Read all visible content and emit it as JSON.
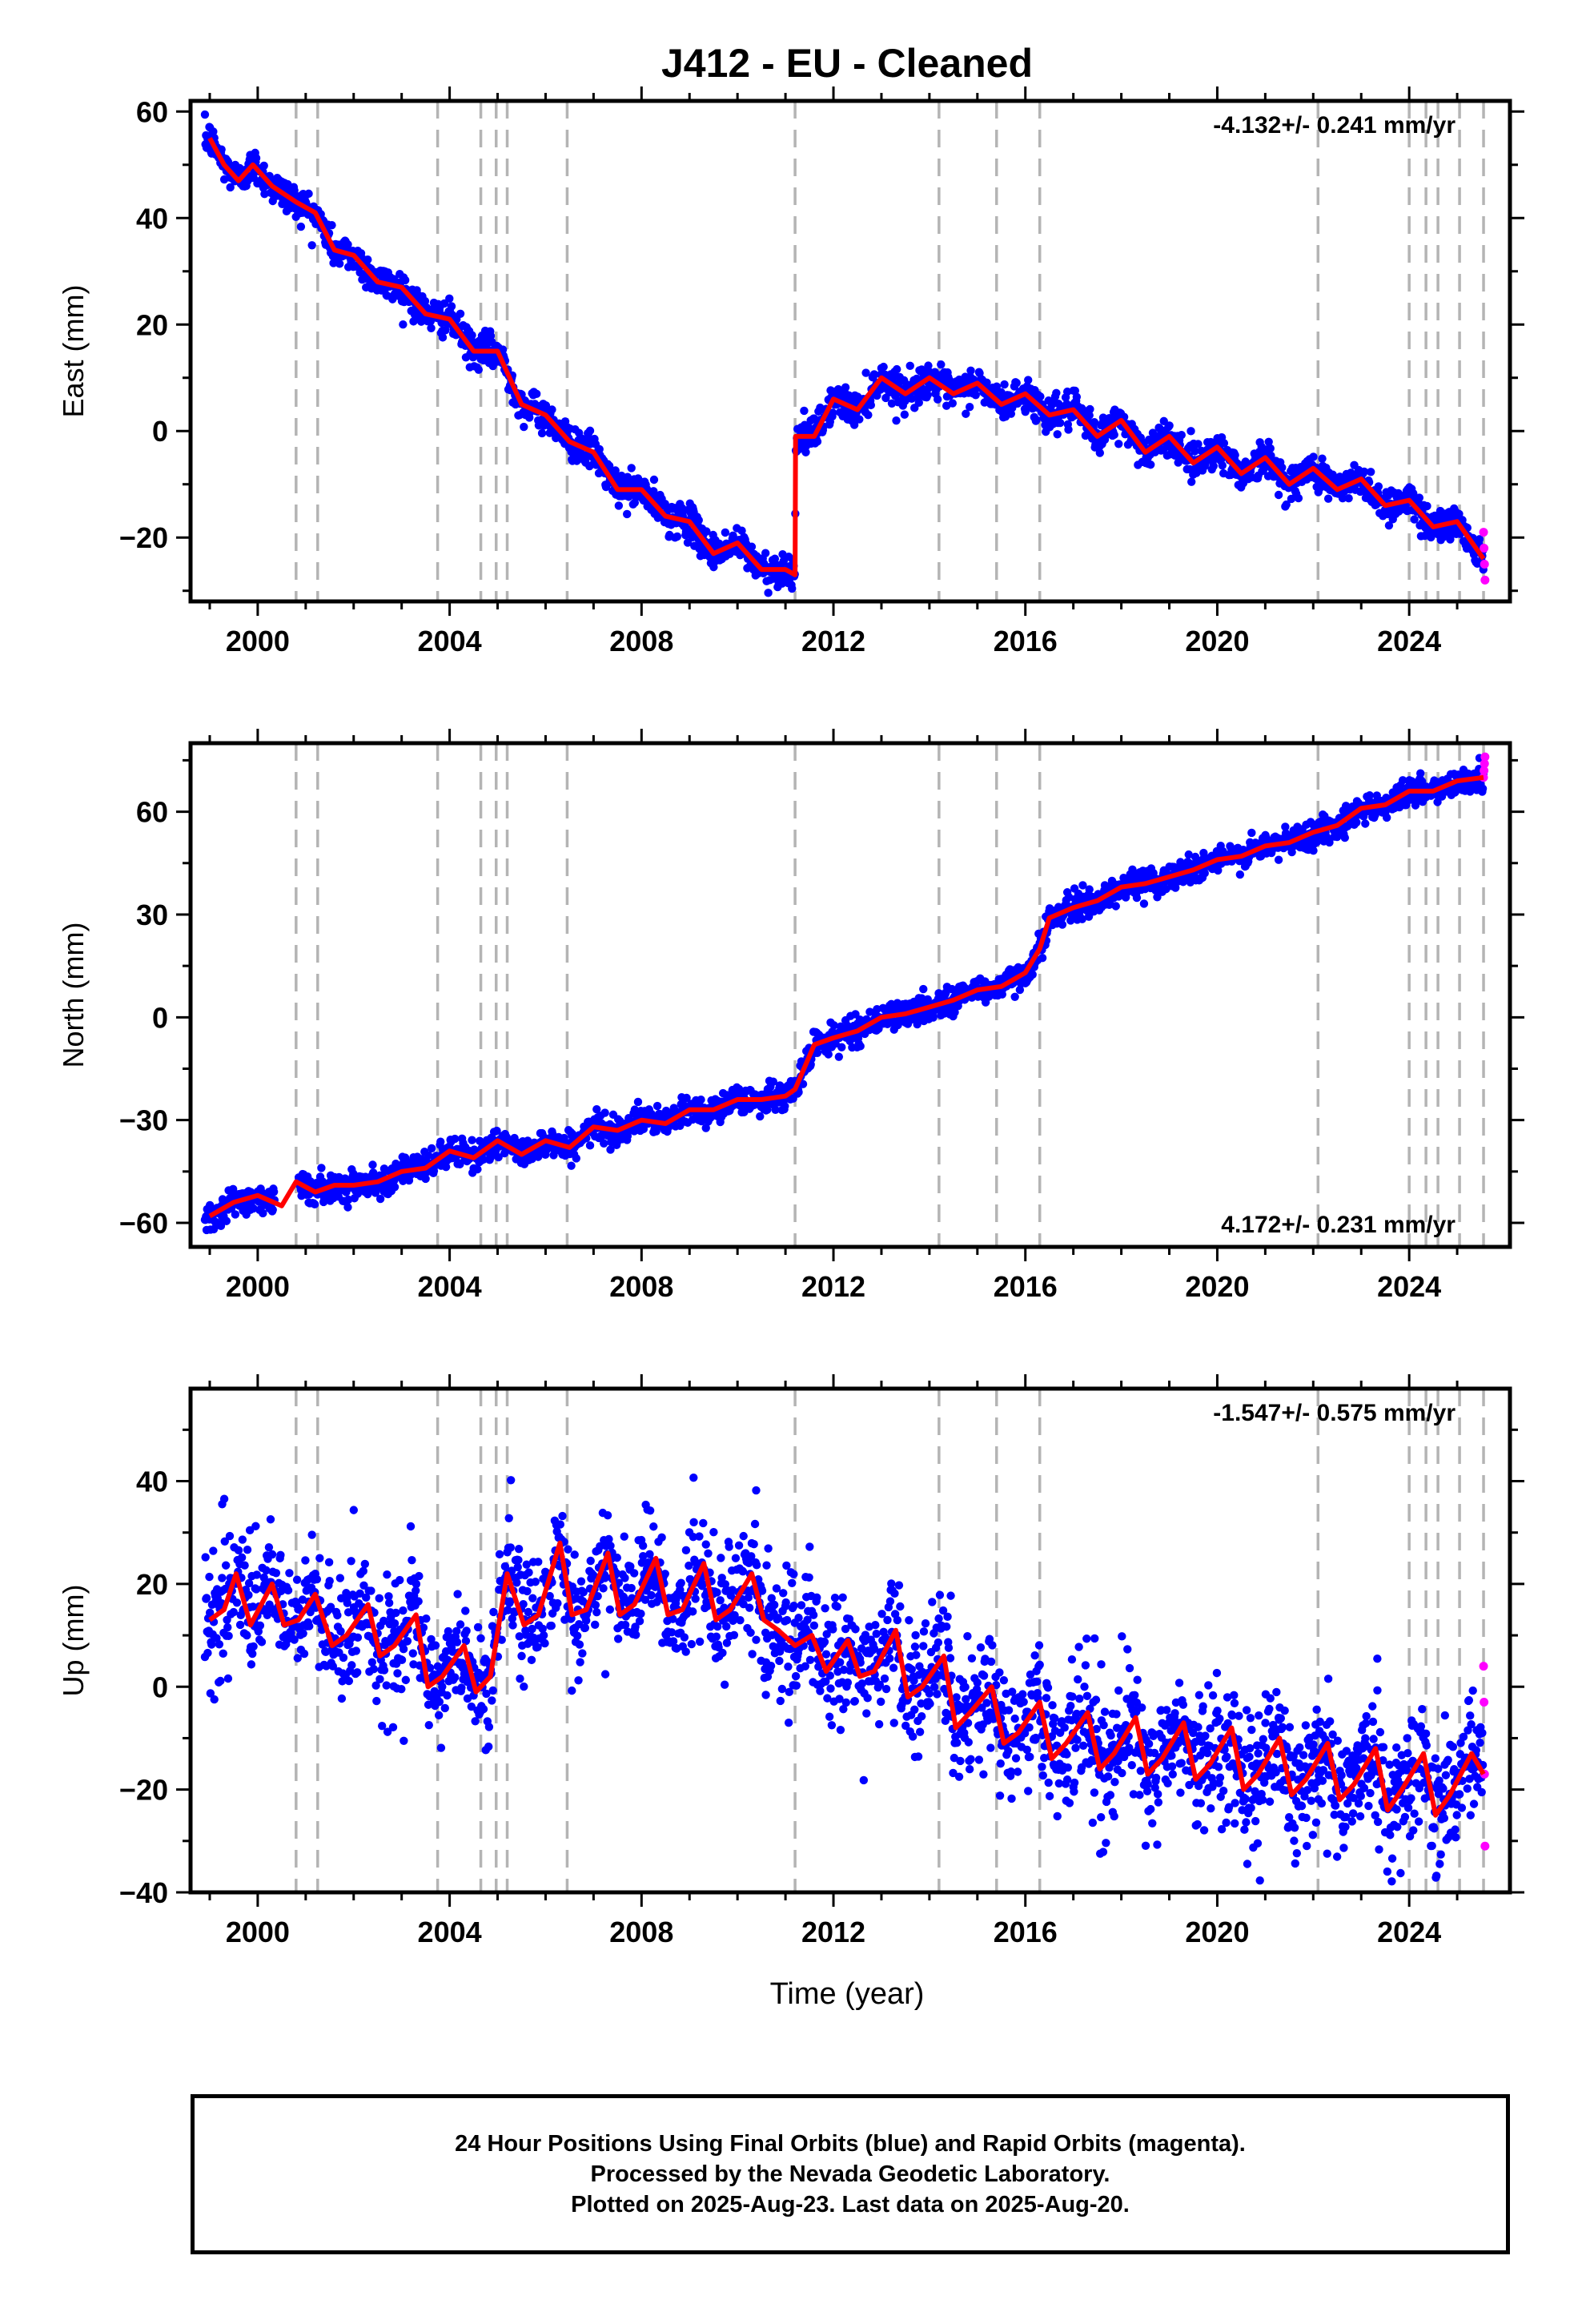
{
  "title": "J412  - EU - Cleaned",
  "x_axis_label": "Time (year)",
  "footer": {
    "line1": "24 Hour Positions Using Final Orbits (blue) and Rapid Orbits (magenta).",
    "line2": "Processed by the Nevada Geodetic Laboratory.",
    "line3": "Plotted on 2025-Aug-23. Last data on 2025-Aug-20."
  },
  "colors": {
    "final_orbits": "#0000ff",
    "rapid_orbits": "#ff00ff",
    "model": "#ff0000",
    "steps": "#b4b4b4"
  },
  "chart_data": [
    {
      "type": "scatter",
      "component": "east",
      "ylabel": "East (mm)",
      "rate_label": "-4.132+/- 0.241 mm/yr",
      "rate_position": "top-right",
      "xlim": [
        1998.6,
        2026.1
      ],
      "ylim": [
        -32,
        62
      ],
      "xticks": [
        2000,
        2004,
        2008,
        2012,
        2016,
        2020,
        2024
      ],
      "yticks": [
        -20,
        0,
        20,
        40,
        60
      ],
      "grid": false,
      "step_epochs": [
        2000.8,
        2001.25,
        2003.75,
        2004.65,
        2004.97,
        2005.2,
        2006.45,
        2011.2,
        2014.2,
        2015.4,
        2016.3,
        2022.1,
        2024.0,
        2024.35,
        2024.6,
        2025.05,
        2025.55
      ],
      "model": {
        "x": [
          1999.0,
          1999.3,
          1999.6,
          1999.9,
          2000.3,
          2000.8,
          2001.2,
          2001.6,
          2002.0,
          2002.5,
          2003.0,
          2003.5,
          2004.0,
          2004.5,
          2005.0,
          2005.5,
          2006.0,
          2006.5,
          2007.0,
          2007.5,
          2008.0,
          2008.5,
          2009.0,
          2009.5,
          2010.0,
          2010.5,
          2011.0,
          2011.2,
          2011.21,
          2011.6,
          2012.0,
          2012.5,
          2013.0,
          2013.5,
          2014.0,
          2014.5,
          2015.0,
          2015.5,
          2016.0,
          2016.5,
          2017.0,
          2017.5,
          2018.0,
          2018.5,
          2019.0,
          2019.5,
          2020.0,
          2020.5,
          2021.0,
          2021.5,
          2022.0,
          2022.5,
          2023.0,
          2023.5,
          2024.0,
          2024.5,
          2025.0,
          2025.55
        ],
        "y": [
          55,
          50,
          47,
          50,
          46,
          43,
          41,
          34,
          33,
          28,
          27,
          22,
          21,
          15,
          15,
          5,
          3,
          -2,
          -4,
          -11,
          -11,
          -16,
          -17,
          -23,
          -21,
          -26,
          -26,
          -27,
          -1,
          -1,
          6,
          4,
          10,
          7,
          10,
          7,
          9,
          5,
          7,
          3,
          4,
          -1,
          2,
          -4,
          -1,
          -6,
          -3,
          -8,
          -5,
          -10,
          -7,
          -11,
          -9,
          -14,
          -13,
          -18,
          -17,
          -24
        ]
      },
      "final_points": {
        "color": "#0000ff",
        "description_range": [
          1998.9,
          2025.55
        ]
      },
      "rapid_points": {
        "color": "#ff00ff",
        "x": [
          2025.55,
          2025.56,
          2025.57,
          2025.58
        ],
        "y": [
          -19,
          -22,
          -25,
          -28
        ]
      }
    },
    {
      "type": "scatter",
      "component": "north",
      "ylabel": "North (mm)",
      "rate_label": "4.172+/- 0.231 mm/yr",
      "rate_position": "bottom-right",
      "xlim": [
        1998.6,
        2026.1
      ],
      "ylim": [
        -67,
        80
      ],
      "xticks": [
        2000,
        2004,
        2008,
        2012,
        2016,
        2020,
        2024
      ],
      "yticks": [
        -60,
        -30,
        0,
        30,
        60
      ],
      "grid": false,
      "step_epochs": [
        2000.8,
        2001.25,
        2003.75,
        2004.65,
        2004.97,
        2005.2,
        2006.45,
        2011.2,
        2014.2,
        2015.4,
        2016.3,
        2022.1,
        2024.0,
        2024.35,
        2024.6,
        2025.05,
        2025.55
      ],
      "model": {
        "x": [
          1999.0,
          1999.5,
          2000.0,
          2000.5,
          2000.8,
          2001.2,
          2001.6,
          2002.0,
          2002.5,
          2003.0,
          2003.5,
          2004.0,
          2004.5,
          2005.0,
          2005.5,
          2006.0,
          2006.5,
          2007.0,
          2007.5,
          2008.0,
          2008.5,
          2009.0,
          2009.5,
          2010.0,
          2010.5,
          2011.0,
          2011.2,
          2011.6,
          2012.0,
          2012.5,
          2013.0,
          2013.5,
          2014.0,
          2014.5,
          2015.0,
          2015.5,
          2016.0,
          2016.3,
          2016.5,
          2017.0,
          2017.5,
          2018.0,
          2018.5,
          2019.0,
          2019.5,
          2020.0,
          2020.5,
          2021.0,
          2021.5,
          2022.0,
          2022.5,
          2023.0,
          2023.5,
          2024.0,
          2024.5,
          2025.0,
          2025.55
        ],
        "y": [
          -58,
          -54,
          -52,
          -55,
          -48,
          -51,
          -49,
          -49,
          -48,
          -45,
          -44,
          -39,
          -41,
          -36,
          -40,
          -36,
          -38,
          -32,
          -33,
          -30,
          -31,
          -27,
          -27,
          -24,
          -24,
          -23,
          -21,
          -8,
          -6,
          -4,
          0,
          1,
          3,
          5,
          8,
          9,
          13,
          20,
          29,
          32,
          34,
          38,
          39,
          41,
          43,
          46,
          47,
          50,
          51,
          54,
          56,
          61,
          62,
          66,
          66,
          69,
          70
        ]
      },
      "final_points": {
        "color": "#0000ff",
        "description_range": [
          1998.9,
          2025.55
        ]
      },
      "rapid_points": {
        "color": "#ff00ff",
        "x": [
          2025.55,
          2025.56,
          2025.57,
          2025.58
        ],
        "y": [
          70,
          72,
          74,
          76
        ]
      }
    },
    {
      "type": "scatter",
      "component": "up",
      "ylabel": "Up (mm)",
      "rate_label": "-1.547+/- 0.575 mm/yr",
      "rate_position": "top-right",
      "xlim": [
        1998.6,
        2026.1
      ],
      "ylim": [
        -40,
        58
      ],
      "xticks": [
        2000,
        2004,
        2008,
        2012,
        2016,
        2020,
        2024
      ],
      "yticks": [
        -40,
        -20,
        0,
        20,
        40
      ],
      "grid": false,
      "step_epochs": [
        2000.8,
        2001.25,
        2003.75,
        2004.65,
        2004.97,
        2005.2,
        2006.45,
        2011.2,
        2014.2,
        2015.4,
        2016.3,
        2022.1,
        2024.0,
        2024.35,
        2024.6,
        2025.05,
        2025.55
      ],
      "model": {
        "x": [
          1999.0,
          1999.3,
          1999.55,
          1999.85,
          2000.3,
          2000.55,
          2000.85,
          2001.2,
          2001.55,
          2001.85,
          2002.3,
          2002.55,
          2002.85,
          2003.3,
          2003.55,
          2003.85,
          2004.3,
          2004.55,
          2004.85,
          2005.2,
          2005.55,
          2005.85,
          2006.3,
          2006.55,
          2006.85,
          2007.3,
          2007.55,
          2007.85,
          2008.3,
          2008.55,
          2008.85,
          2009.3,
          2009.55,
          2009.85,
          2010.3,
          2010.55,
          2010.85,
          2011.2,
          2011.55,
          2011.85,
          2012.3,
          2012.55,
          2012.85,
          2013.3,
          2013.55,
          2013.85,
          2014.3,
          2014.55,
          2014.85,
          2015.3,
          2015.55,
          2015.85,
          2016.3,
          2016.55,
          2016.85,
          2017.3,
          2017.55,
          2017.85,
          2018.3,
          2018.55,
          2018.85,
          2019.3,
          2019.55,
          2019.85,
          2020.3,
          2020.55,
          2020.85,
          2021.3,
          2021.55,
          2021.85,
          2022.3,
          2022.55,
          2022.85,
          2023.3,
          2023.55,
          2023.85,
          2024.3,
          2024.55,
          2024.85,
          2025.3,
          2025.55
        ],
        "y": [
          13,
          15,
          22,
          12,
          20,
          12,
          13,
          18,
          8,
          10,
          16,
          6,
          8,
          14,
          0,
          2,
          8,
          -1,
          2,
          22,
          12,
          14,
          28,
          14,
          15,
          26,
          14,
          16,
          25,
          14,
          15,
          24,
          13,
          15,
          22,
          13,
          11,
          8,
          10,
          3,
          9,
          2,
          3,
          11,
          -2,
          0,
          6,
          -8,
          -5,
          0,
          -11,
          -9,
          -3,
          -14,
          -11,
          -5,
          -16,
          -13,
          -6,
          -17,
          -14,
          -7,
          -18,
          -15,
          -8,
          -20,
          -17,
          -10,
          -21,
          -18,
          -11,
          -22,
          -19,
          -12,
          -24,
          -20,
          -13,
          -25,
          -21,
          -13,
          -17
        ]
      },
      "final_points": {
        "color": "#0000ff",
        "description_range": [
          1998.9,
          2025.55
        ]
      },
      "rapid_points": {
        "color": "#ff00ff",
        "x": [
          2025.55,
          2025.56,
          2025.57,
          2025.58
        ],
        "y": [
          4,
          -3,
          -17,
          -31
        ]
      }
    }
  ]
}
